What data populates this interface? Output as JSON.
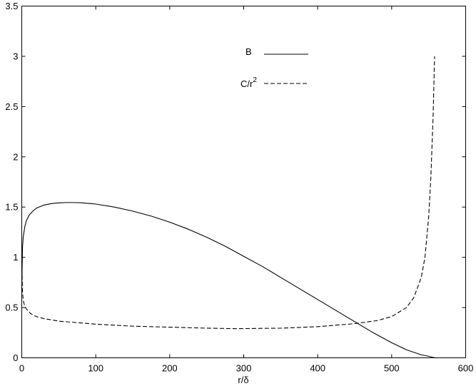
{
  "chart_data": {
    "type": "line",
    "xlabel": "r/δ",
    "ylabel": "",
    "xlim": [
      0,
      600
    ],
    "ylim": [
      0,
      3.5
    ],
    "xticks": [
      0,
      100,
      200,
      300,
      400,
      500,
      600
    ],
    "xtick_labels": [
      "0",
      "100",
      "200",
      "300",
      "400",
      "500",
      "600"
    ],
    "yticks": [
      0,
      0.5,
      1,
      1.5,
      2,
      2.5,
      3,
      3.5
    ],
    "ytick_labels": [
      "0",
      "0.5",
      "1",
      "1.5",
      "2",
      "2.5",
      "3",
      "3.5"
    ],
    "grid": false,
    "legend": "top-center",
    "series": [
      {
        "name": "B",
        "style": "solid",
        "color": "#000000",
        "x": [
          0,
          1,
          2,
          4,
          6,
          10,
          15,
          20,
          30,
          40,
          50,
          60,
          70,
          80,
          100,
          125,
          150,
          175,
          200,
          225,
          250,
          275,
          300,
          325,
          350,
          375,
          400,
          425,
          450,
          475,
          500,
          520,
          540,
          550,
          555,
          560
        ],
        "y": [
          0.7,
          1.1,
          1.2,
          1.3,
          1.36,
          1.42,
          1.46,
          1.49,
          1.52,
          1.535,
          1.542,
          1.545,
          1.545,
          1.543,
          1.53,
          1.5,
          1.46,
          1.41,
          1.35,
          1.28,
          1.2,
          1.11,
          1.01,
          0.91,
          0.8,
          0.69,
          0.58,
          0.47,
          0.36,
          0.25,
          0.15,
          0.08,
          0.03,
          0.015,
          0.005,
          0.0
        ]
      },
      {
        "name": "C/r²",
        "label_base": "C/r",
        "label_sup": "2",
        "style": "dashed",
        "color": "#000000",
        "x": [
          0,
          1,
          2,
          3,
          5,
          8,
          12,
          20,
          30,
          50,
          100,
          150,
          200,
          250,
          290,
          350,
          400,
          450,
          480,
          500,
          520,
          530,
          540,
          545,
          550,
          553,
          556,
          558
        ],
        "y": [
          0.95,
          0.65,
          0.58,
          0.54,
          0.5,
          0.47,
          0.44,
          0.41,
          0.39,
          0.365,
          0.335,
          0.315,
          0.305,
          0.295,
          0.29,
          0.295,
          0.31,
          0.34,
          0.37,
          0.41,
          0.5,
          0.6,
          0.8,
          1.0,
          1.4,
          1.8,
          2.4,
          3.0
        ]
      }
    ]
  }
}
